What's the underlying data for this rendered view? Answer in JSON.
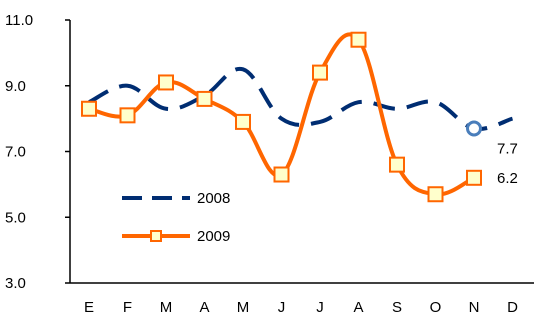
{
  "chart_data": {
    "type": "line",
    "title": "",
    "xlabel": "",
    "ylabel": "",
    "categories": [
      "E",
      "F",
      "M",
      "A",
      "M",
      "J",
      "J",
      "A",
      "S",
      "O",
      "N",
      "D"
    ],
    "ylim": [
      3.0,
      11.0
    ],
    "yticks": [
      "3.0",
      "5.0",
      "7.0",
      "9.0",
      "11.0"
    ],
    "grid": false,
    "legend_position": "bottom-left",
    "series": [
      {
        "name": "2008",
        "color": "#002D72",
        "style": "dashed",
        "values": [
          8.5,
          9.0,
          8.3,
          8.7,
          9.5,
          8.0,
          7.9,
          8.5,
          8.3,
          8.5,
          7.7,
          8.0
        ],
        "highlight_index": 10,
        "end_label": "7.7"
      },
      {
        "name": "2009",
        "color": "#FF6600",
        "marker_fill": "#FFFFCC",
        "style": "solid",
        "marker": "square",
        "values": [
          8.3,
          8.1,
          9.1,
          8.6,
          7.9,
          6.3,
          9.4,
          10.4,
          6.6,
          5.7,
          6.2,
          null
        ],
        "end_label": "6.2"
      }
    ]
  }
}
